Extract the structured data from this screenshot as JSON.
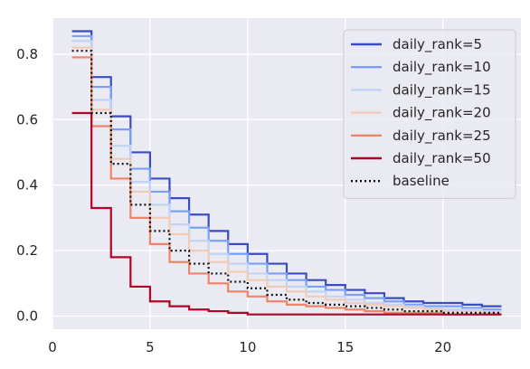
{
  "chart_data": {
    "type": "line",
    "step": "post",
    "title": "",
    "xlabel": "",
    "ylabel": "",
    "xlim": [
      0,
      24
    ],
    "ylim": [
      -0.04,
      0.91
    ],
    "xticks": [
      0,
      5,
      10,
      15,
      20
    ],
    "yticks": [
      0.0,
      0.2,
      0.4,
      0.6,
      0.8
    ],
    "xtick_labels": [
      "0",
      "5",
      "10",
      "15",
      "20"
    ],
    "ytick_labels": [
      "0.0",
      "0.2",
      "0.4",
      "0.6",
      "0.8"
    ],
    "grid": true,
    "legend_position": "top-right",
    "x": [
      1,
      2,
      3,
      4,
      5,
      6,
      7,
      8,
      9,
      10,
      11,
      12,
      13,
      14,
      15,
      16,
      17,
      18,
      19,
      20,
      21,
      22,
      23
    ],
    "series": [
      {
        "name": "daily_rank=5",
        "color": "#3b4cc0",
        "style": "solid",
        "values": [
          0.87,
          0.73,
          0.61,
          0.5,
          0.42,
          0.36,
          0.31,
          0.26,
          0.22,
          0.19,
          0.16,
          0.13,
          0.11,
          0.095,
          0.08,
          0.07,
          0.055,
          0.045,
          0.04,
          0.04,
          0.035,
          0.03,
          0.03
        ]
      },
      {
        "name": "daily_rank=10",
        "color": "#7b9ff9",
        "style": "solid",
        "values": [
          0.855,
          0.7,
          0.57,
          0.45,
          0.38,
          0.32,
          0.27,
          0.23,
          0.19,
          0.16,
          0.13,
          0.11,
          0.09,
          0.08,
          0.065,
          0.055,
          0.045,
          0.035,
          0.03,
          0.03,
          0.025,
          0.02,
          0.02
        ]
      },
      {
        "name": "daily_rank=15",
        "color": "#c0d4f5",
        "style": "solid",
        "values": [
          0.84,
          0.66,
          0.52,
          0.41,
          0.34,
          0.28,
          0.23,
          0.19,
          0.16,
          0.13,
          0.11,
          0.09,
          0.075,
          0.06,
          0.05,
          0.04,
          0.035,
          0.03,
          0.025,
          0.02,
          0.02,
          0.015,
          0.015
        ]
      },
      {
        "name": "daily_rank=20",
        "color": "#f2cbb7",
        "style": "solid",
        "values": [
          0.82,
          0.63,
          0.48,
          0.38,
          0.3,
          0.25,
          0.2,
          0.165,
          0.135,
          0.11,
          0.09,
          0.075,
          0.06,
          0.05,
          0.04,
          0.035,
          0.03,
          0.025,
          0.02,
          0.015,
          0.015,
          0.01,
          0.01
        ]
      },
      {
        "name": "daily_rank=25",
        "color": "#ee8468",
        "style": "solid",
        "values": [
          0.79,
          0.58,
          0.42,
          0.3,
          0.22,
          0.165,
          0.13,
          0.1,
          0.075,
          0.06,
          0.045,
          0.035,
          0.03,
          0.025,
          0.02,
          0.015,
          0.01,
          0.01,
          0.01,
          0.005,
          0.005,
          0.005,
          0.005
        ]
      },
      {
        "name": "daily_rank=50",
        "color": "#b40426",
        "style": "solid",
        "values": [
          0.62,
          0.33,
          0.18,
          0.09,
          0.045,
          0.03,
          0.02,
          0.015,
          0.01,
          0.005,
          0.005,
          0.005,
          0.005,
          0.005,
          0.005,
          0.005,
          0.005,
          0.005,
          0.005,
          0.005,
          0.005,
          0.005,
          0.005
        ]
      },
      {
        "name": "baseline",
        "color": "#111111",
        "style": "dotted",
        "values": [
          0.81,
          0.62,
          0.465,
          0.34,
          0.26,
          0.2,
          0.16,
          0.13,
          0.105,
          0.085,
          0.065,
          0.05,
          0.04,
          0.035,
          0.03,
          0.025,
          0.02,
          0.015,
          0.015,
          0.01,
          0.01,
          0.01,
          0.01
        ]
      }
    ]
  }
}
